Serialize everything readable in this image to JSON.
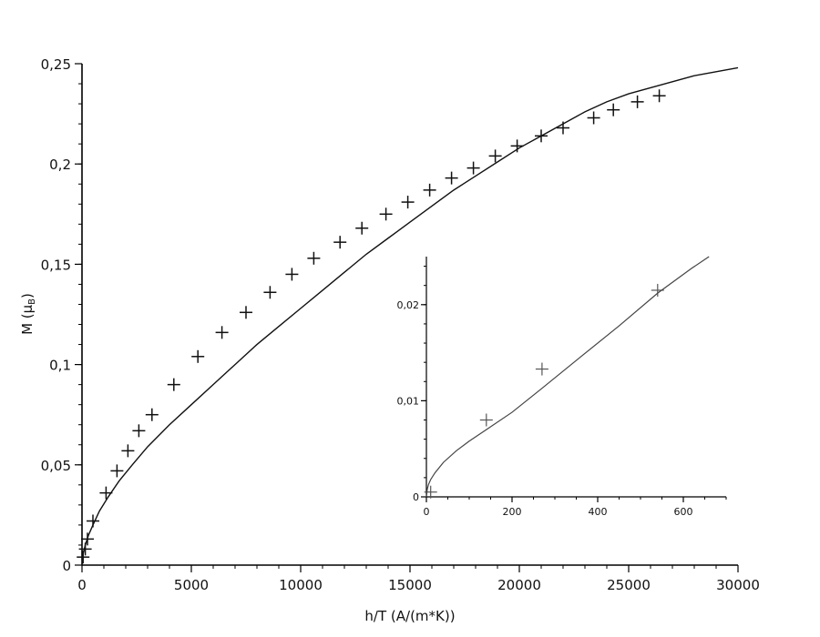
{
  "chart_data": [
    {
      "type": "scatter",
      "xlabel": "h/T (A/(m*K))",
      "ylabel": "M (μ",
      "ylabel_sub": "B",
      "ylabel_close": ")",
      "xlim": [
        0,
        30000
      ],
      "ylim": [
        0,
        0.25
      ],
      "x_ticks": [
        0,
        5000,
        10000,
        15000,
        20000,
        25000,
        30000
      ],
      "x_tick_labels": [
        "0",
        "5000",
        "10000",
        "15000",
        "20000",
        "25000",
        "30000"
      ],
      "y_ticks": [
        0,
        0.05,
        0.1,
        0.15,
        0.2,
        0.25
      ],
      "y_tick_labels": [
        "0",
        "0,05",
        "0,1",
        "0,15",
        "0,2",
        "0,25"
      ],
      "grid": false,
      "legend": "none",
      "series": [
        {
          "kind": "markers",
          "marker": "plus",
          "x": [
            50,
            150,
            250,
            500,
            1100,
            1600,
            2100,
            2600,
            3200,
            4200,
            5300,
            6400,
            7500,
            8600,
            9600,
            10600,
            11800,
            12800,
            13900,
            14900,
            15900,
            16900,
            17900,
            18900,
            19900,
            21000,
            22000,
            23400,
            24300,
            25400,
            26400
          ],
          "y": [
            0.004,
            0.008,
            0.013,
            0.022,
            0.036,
            0.047,
            0.057,
            0.067,
            0.075,
            0.09,
            0.104,
            0.116,
            0.126,
            0.136,
            0.145,
            0.153,
            0.161,
            0.168,
            0.175,
            0.181,
            0.187,
            0.193,
            0.198,
            0.204,
            0.209,
            0.214,
            0.218,
            0.223,
            0.227,
            0.231,
            0.234
          ]
        },
        {
          "kind": "line",
          "x": [
            0,
            20,
            60,
            150,
            300,
            500,
            800,
            1200,
            1700,
            2300,
            3000,
            4000,
            5000,
            6000,
            7000,
            8000,
            9000,
            10000,
            11000,
            12000,
            13000,
            14000,
            15000,
            16000,
            17000,
            18000,
            19000,
            20000,
            21000,
            22000,
            23000,
            24000,
            25000,
            26000,
            27000,
            28000,
            29000,
            30000
          ],
          "y": [
            0,
            0.003,
            0.006,
            0.01,
            0.015,
            0.02,
            0.027,
            0.034,
            0.042,
            0.05,
            0.059,
            0.07,
            0.08,
            0.09,
            0.1,
            0.11,
            0.119,
            0.128,
            0.137,
            0.146,
            0.155,
            0.163,
            0.171,
            0.179,
            0.187,
            0.194,
            0.201,
            0.208,
            0.214,
            0.22,
            0.226,
            0.231,
            0.235,
            0.238,
            0.241,
            0.244,
            0.246,
            0.248
          ]
        }
      ]
    },
    {
      "type": "scatter",
      "xlim": [
        0,
        700
      ],
      "ylim": [
        0,
        0.025
      ],
      "x_ticks": [
        0,
        200,
        400,
        600
      ],
      "x_tick_labels": [
        "0",
        "200",
        "400",
        "600"
      ],
      "y_ticks": [
        0,
        0.01,
        0.02
      ],
      "y_tick_labels": [
        "0",
        "0,01",
        "0,02"
      ],
      "grid": false,
      "legend": "none",
      "series": [
        {
          "kind": "markers",
          "marker": "plus",
          "x": [
            10,
            140,
            270,
            540
          ],
          "y": [
            0.0005,
            0.008,
            0.0133,
            0.0215
          ]
        },
        {
          "kind": "line",
          "x": [
            0,
            2,
            5,
            10,
            20,
            40,
            70,
            100,
            140,
            200,
            270,
            350,
            450,
            540,
            620,
            660
          ],
          "y": [
            0,
            0.0008,
            0.0013,
            0.0018,
            0.0025,
            0.0036,
            0.0048,
            0.0058,
            0.007,
            0.0088,
            0.0113,
            0.0142,
            0.0178,
            0.0212,
            0.0238,
            0.025
          ]
        }
      ]
    }
  ]
}
